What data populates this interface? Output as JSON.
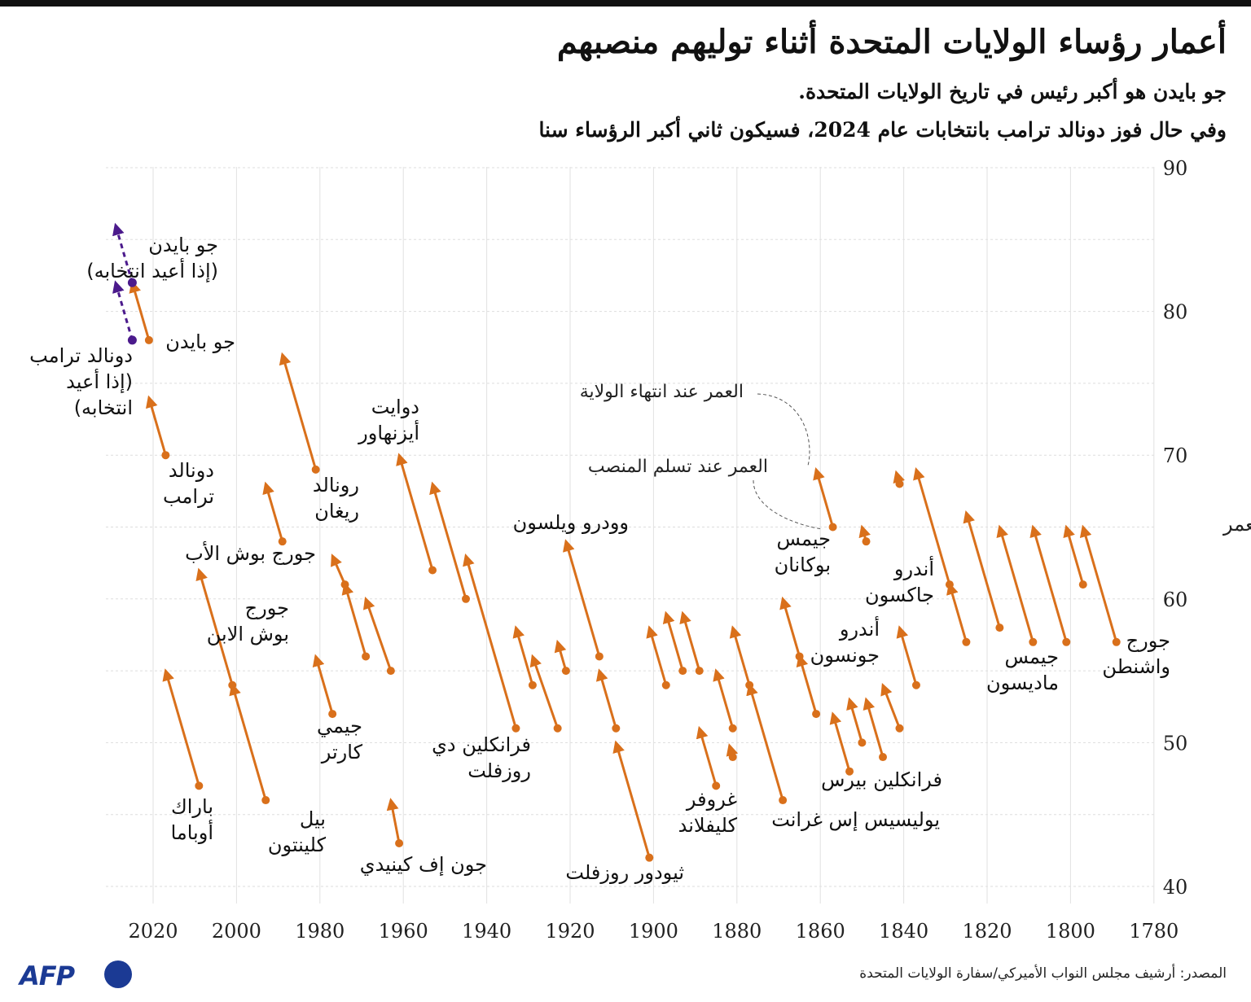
{
  "title": "أعمار رؤساء الولايات المتحدة أثناء توليهم منصبهم",
  "subtitles": [
    "جو بايدن هو أكبر رئيس في تاريخ الولايات المتحدة.",
    "وفي حال فوز دونالد ترامب بانتخابات عام 2024، فسيكون ثاني أكبر الرؤساء سنا"
  ],
  "source": "المصدر: أرشيف مجلس النواب الأميركي/سفارة الولايات المتحدة",
  "logo": "AFP",
  "colors": {
    "term": "#d9701b",
    "projection": "#4b1a8c",
    "grid": "#dddddd",
    "text": "#111111"
  },
  "chart_data": {
    "type": "arrow",
    "title": "أعمار رؤساء الولايات المتحدة أثناء توليهم منصبهم",
    "ylabel": "العمر",
    "xlabel": "",
    "x_reversed": true,
    "xlim": [
      1776,
      2032
    ],
    "ylim": [
      40,
      90
    ],
    "x_ticks": [
      "2020",
      "2000",
      "1980",
      "1960",
      "1940",
      "1920",
      "1900",
      "1880",
      "1860",
      "1840",
      "1820",
      "1800",
      "1780"
    ],
    "y_ticks": [
      "40",
      "50",
      "60",
      "70",
      "80",
      "90"
    ],
    "legend_annotations": [
      "العمر عند انتهاء الولاية",
      "العمر عند تسلم المنصب"
    ],
    "terms": [
      {
        "start": 1789,
        "end": 1797,
        "age_start": 57,
        "age_end": 65
      },
      {
        "start": 1797,
        "end": 1801,
        "age_start": 61,
        "age_end": 65
      },
      {
        "start": 1801,
        "end": 1809,
        "age_start": 57,
        "age_end": 65
      },
      {
        "start": 1809,
        "end": 1817,
        "age_start": 57,
        "age_end": 65
      },
      {
        "start": 1817,
        "end": 1825,
        "age_start": 58,
        "age_end": 66
      },
      {
        "start": 1825,
        "end": 1829,
        "age_start": 57,
        "age_end": 61
      },
      {
        "start": 1829,
        "end": 1837,
        "age_start": 61,
        "age_end": 69
      },
      {
        "start": 1837,
        "end": 1841,
        "age_start": 54,
        "age_end": 58
      },
      {
        "start": 1841,
        "end": 1841,
        "age_start": 68,
        "age_end": 68
      },
      {
        "start": 1841,
        "end": 1845,
        "age_start": 51,
        "age_end": 54
      },
      {
        "start": 1845,
        "end": 1849,
        "age_start": 49,
        "age_end": 53
      },
      {
        "start": 1849,
        "end": 1850,
        "age_start": 64,
        "age_end": 65
      },
      {
        "start": 1850,
        "end": 1853,
        "age_start": 50,
        "age_end": 53
      },
      {
        "start": 1853,
        "end": 1857,
        "age_start": 48,
        "age_end": 52
      },
      {
        "start": 1857,
        "end": 1861,
        "age_start": 65,
        "age_end": 69
      },
      {
        "start": 1861,
        "end": 1865,
        "age_start": 52,
        "age_end": 56
      },
      {
        "start": 1865,
        "end": 1869,
        "age_start": 56,
        "age_end": 60
      },
      {
        "start": 1869,
        "end": 1877,
        "age_start": 46,
        "age_end": 54
      },
      {
        "start": 1877,
        "end": 1881,
        "age_start": 54,
        "age_end": 58
      },
      {
        "start": 1881,
        "end": 1881,
        "age_start": 49,
        "age_end": 49
      },
      {
        "start": 1881,
        "end": 1885,
        "age_start": 51,
        "age_end": 55
      },
      {
        "start": 1885,
        "end": 1889,
        "age_start": 47,
        "age_end": 51
      },
      {
        "start": 1889,
        "end": 1893,
        "age_start": 55,
        "age_end": 59
      },
      {
        "start": 1893,
        "end": 1897,
        "age_start": 55,
        "age_end": 59
      },
      {
        "start": 1897,
        "end": 1901,
        "age_start": 54,
        "age_end": 58
      },
      {
        "start": 1901,
        "end": 1909,
        "age_start": 42,
        "age_end": 50
      },
      {
        "start": 1909,
        "end": 1913,
        "age_start": 51,
        "age_end": 55
      },
      {
        "start": 1913,
        "end": 1921,
        "age_start": 56,
        "age_end": 64
      },
      {
        "start": 1921,
        "end": 1923,
        "age_start": 55,
        "age_end": 57
      },
      {
        "start": 1923,
        "end": 1929,
        "age_start": 51,
        "age_end": 56
      },
      {
        "start": 1929,
        "end": 1933,
        "age_start": 54,
        "age_end": 58
      },
      {
        "start": 1933,
        "end": 1945,
        "age_start": 51,
        "age_end": 63
      },
      {
        "start": 1945,
        "end": 1953,
        "age_start": 60,
        "age_end": 68
      },
      {
        "start": 1953,
        "end": 1961,
        "age_start": 62,
        "age_end": 70
      },
      {
        "start": 1961,
        "end": 1963,
        "age_start": 43,
        "age_end": 46
      },
      {
        "start": 1963,
        "end": 1969,
        "age_start": 55,
        "age_end": 60
      },
      {
        "start": 1969,
        "end": 1974,
        "age_start": 56,
        "age_end": 61
      },
      {
        "start": 1974,
        "end": 1977,
        "age_start": 61,
        "age_end": 63
      },
      {
        "start": 1977,
        "end": 1981,
        "age_start": 52,
        "age_end": 56
      },
      {
        "start": 1981,
        "end": 1989,
        "age_start": 69,
        "age_end": 77
      },
      {
        "start": 1989,
        "end": 1993,
        "age_start": 64,
        "age_end": 68
      },
      {
        "start": 1993,
        "end": 2001,
        "age_start": 46,
        "age_end": 54
      },
      {
        "start": 2001,
        "end": 2009,
        "age_start": 54,
        "age_end": 62
      },
      {
        "start": 2009,
        "end": 2017,
        "age_start": 47,
        "age_end": 55
      },
      {
        "start": 2017,
        "end": 2021,
        "age_start": 70,
        "age_end": 74
      },
      {
        "start": 2021,
        "end": 2025,
        "age_start": 78,
        "age_end": 82
      }
    ],
    "projections": [
      {
        "start": 2025,
        "end": 2029,
        "age_start": 78,
        "age_end": 82
      },
      {
        "start": 2025,
        "end": 2029,
        "age_start": 82,
        "age_end": 86
      }
    ],
    "president_labels": [
      {
        "lines": [
          "جورج",
          "واشنطن"
        ]
      },
      {
        "lines": [
          "جيمس",
          "ماديسون"
        ]
      },
      {
        "lines": [
          "أندرو",
          "جاكسون"
        ]
      },
      {
        "lines": [
          "فرانكلين بيرس"
        ]
      },
      {
        "lines": [
          "يوليسيس إس غرانت"
        ]
      },
      {
        "lines": [
          "جيمس",
          "بوكانان"
        ]
      },
      {
        "lines": [
          "أندرو",
          "جونسون"
        ]
      },
      {
        "lines": [
          "غروفر",
          "كليفلاند"
        ]
      },
      {
        "lines": [
          "ثيودور روزفلت"
        ]
      },
      {
        "lines": [
          "وودرو ويلسون"
        ]
      },
      {
        "lines": [
          "فرانكلين دي",
          "روزفلت"
        ]
      },
      {
        "lines": [
          "دوايت",
          "أيزنهاور"
        ]
      },
      {
        "lines": [
          "جون إف كينيدي"
        ]
      },
      {
        "lines": [
          "جيمي",
          "كارتر"
        ]
      },
      {
        "lines": [
          "رونالد",
          "ريغان"
        ]
      },
      {
        "lines": [
          "جورج بوش الأب"
        ]
      },
      {
        "lines": [
          "جورج",
          "بوش الابن"
        ]
      },
      {
        "lines": [
          "بيل",
          "كلينتون"
        ]
      },
      {
        "lines": [
          "باراك",
          "أوباما"
        ]
      },
      {
        "lines": [
          "دونالد",
          "ترامب"
        ]
      },
      {
        "lines": [
          "جو بايدن"
        ]
      },
      {
        "lines": [
          "دونالد ترامب",
          "(إذا أعيد",
          "انتخابه)"
        ]
      },
      {
        "lines": [
          "جو بايدن",
          "(إذا أعيد انتخابه)"
        ]
      }
    ]
  }
}
